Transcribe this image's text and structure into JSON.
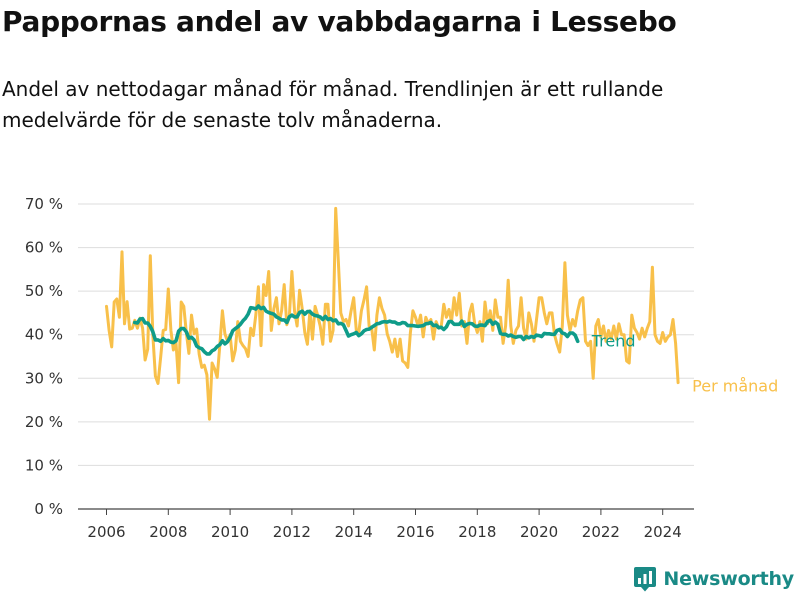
{
  "header": {
    "title": "Pappornas andel av vabbdagarna i Lessebo",
    "subtitle": "Andel av nettodagar månad för månad. Trendlinjen är ett rullande medelvärde för de senaste tolv månaderna."
  },
  "brand": {
    "name": "Newsworthy",
    "icon": "newsworthy-logo-icon",
    "color": "#1a8a86"
  },
  "chart_data": {
    "type": "line",
    "x_start": "2006-01",
    "x_step": "month",
    "x_ticks": [
      "2006",
      "2008",
      "2010",
      "2012",
      "2014",
      "2016",
      "2018",
      "2020",
      "2022",
      "2024"
    ],
    "y_ticks": [
      "0 %",
      "10 %",
      "20 %",
      "30 %",
      "40 %",
      "50 %",
      "60 %",
      "70 %"
    ],
    "ylim": [
      0,
      70
    ],
    "grid": true,
    "legend": "direct labels at right end of lines",
    "series": [
      {
        "name": "Per månad",
        "color": "#f8c04a",
        "values": [
          46.5,
          41,
          37.2,
          47.5,
          48.2,
          44,
          59,
          42.5,
          47.6,
          41.3,
          41.5,
          43.3,
          41.5,
          43.8,
          41.5,
          34.2,
          36.7,
          58.1,
          40,
          30.5,
          28.8,
          34.7,
          41,
          41.2,
          50.5,
          41,
          36.5,
          38.2,
          29,
          47.5,
          46.5,
          40.5,
          35.7,
          44.5,
          40.2,
          41.3,
          35.5,
          32.5,
          33,
          30.8,
          20.6,
          33.5,
          32.2,
          30.2,
          37.5,
          45.5,
          40.2,
          38.5,
          40,
          34,
          36.5,
          43,
          38.5,
          37.5,
          36.8,
          35,
          41.5,
          39.8,
          44.5,
          51,
          37.5,
          51.5,
          49,
          54.5,
          41,
          46,
          48.5,
          42.5,
          45.5,
          51.5,
          42.3,
          44,
          54.5,
          45.5,
          42,
          50.2,
          46,
          40.5,
          37.8,
          45.5,
          39,
          46.5,
          44.5,
          42,
          37.8,
          47,
          47,
          38.5,
          41,
          69,
          57,
          45,
          43,
          43.5,
          42,
          45.5,
          48.5,
          41,
          40.5,
          45.5,
          48,
          51,
          42,
          41.5,
          36.5,
          44.5,
          48.5,
          46,
          44.5,
          40.2,
          38.5,
          36,
          39,
          35,
          39,
          34,
          33.5,
          32.5,
          40.5,
          45.5,
          44,
          42,
          44.5,
          39.5,
          44,
          42.5,
          43.5,
          39,
          43,
          41.5,
          42,
          47,
          44,
          45.8,
          43,
          48.5,
          44.5,
          49.5,
          42,
          43,
          38,
          45,
          47,
          42.5,
          40.5,
          43,
          38.5,
          47.5,
          42.5,
          45.5,
          41,
          48,
          44,
          44,
          38,
          42,
          52.5,
          42,
          38,
          41,
          42,
          48.5,
          41.5,
          39,
          45,
          42.5,
          38.5,
          43.5,
          48.5,
          48.5,
          45,
          42.5,
          45,
          45,
          40,
          37.8,
          36,
          42,
          56.5,
          44.5,
          41,
          43.5,
          42,
          45.5,
          48,
          48.5,
          38.5,
          37.5,
          38.5,
          30,
          42,
          43.5,
          39.5,
          42,
          38.5,
          41,
          39,
          42,
          39,
          42.5,
          40,
          40,
          34,
          33.5,
          44.5,
          41.5,
          40.5,
          39,
          41.5,
          39.5,
          41.5,
          43,
          55.5,
          40,
          38.5,
          38,
          40.5,
          38.5,
          39.5,
          40,
          43.5,
          38,
          29
        ]
      },
      {
        "name": "Trend",
        "color": "#0f9c89",
        "start_index": 11,
        "values": [
          42.8,
          42.7,
          43.6,
          43.7,
          42.7,
          42.7,
          41.9,
          40.7,
          38.8,
          38.8,
          38.5,
          39.1,
          38.6,
          38.7,
          38.3,
          38.2,
          38.6,
          40.8,
          41.4,
          41.4,
          40.7,
          39.2,
          39.4,
          38.8,
          37.4,
          37,
          36.8,
          36.1,
          35.6,
          35.6,
          36.3,
          36.6,
          37.3,
          37.7,
          38.6,
          37.9,
          38.4,
          39.4,
          40.9,
          41.4,
          41.8,
          42.4,
          43.2,
          43.8,
          44.7,
          46.2,
          46.1,
          45.9,
          46.6,
          46,
          46.3,
          45.4,
          45.1,
          44.9,
          44.7,
          44.1,
          43.8,
          43.4,
          43.4,
          42.8,
          44.1,
          44.5,
          44.1,
          44.1,
          45.1,
          45.4,
          44.7,
          45.3,
          45.3,
          44.7,
          44.4,
          44.3,
          44.1,
          43.5,
          44.2,
          43.5,
          43.7,
          43.2,
          43.4,
          42.5,
          42.6,
          42.3,
          41,
          39.7,
          40,
          40.2,
          40.5,
          39.8,
          40.2,
          40.9,
          41.2,
          41.3,
          41.7,
          42.1,
          42.5,
          42.6,
          42.9,
          43,
          42.9,
          43.1,
          42.9,
          42.9,
          42.5,
          42.5,
          42.8,
          42.7,
          42.1,
          42.1,
          42.1,
          42,
          41.9,
          42,
          42.1,
          42.5,
          42.6,
          42.8,
          42.1,
          42.2,
          41.6,
          41.7,
          41.2,
          41.8,
          43,
          43,
          42.4,
          42.4,
          42.4,
          43.1,
          41.9,
          42.4,
          42.6,
          42.5,
          42,
          41.9,
          42.2,
          42.2,
          42.1,
          43,
          43.3,
          42.4,
          42.9,
          42.4,
          40.3,
          40.1,
          40.1,
          39.7,
          39.9,
          39.6,
          39.4,
          39.6,
          39.6,
          38.9,
          39.6,
          39.3,
          39.6,
          39.4,
          39.9,
          39.8,
          39.6,
          40.3,
          40.2,
          40.2,
          40.1,
          40.1,
          41,
          41.2,
          40.4,
          40.2,
          39.6,
          40.4,
          40.4,
          39.9,
          38.5
        ]
      }
    ]
  }
}
